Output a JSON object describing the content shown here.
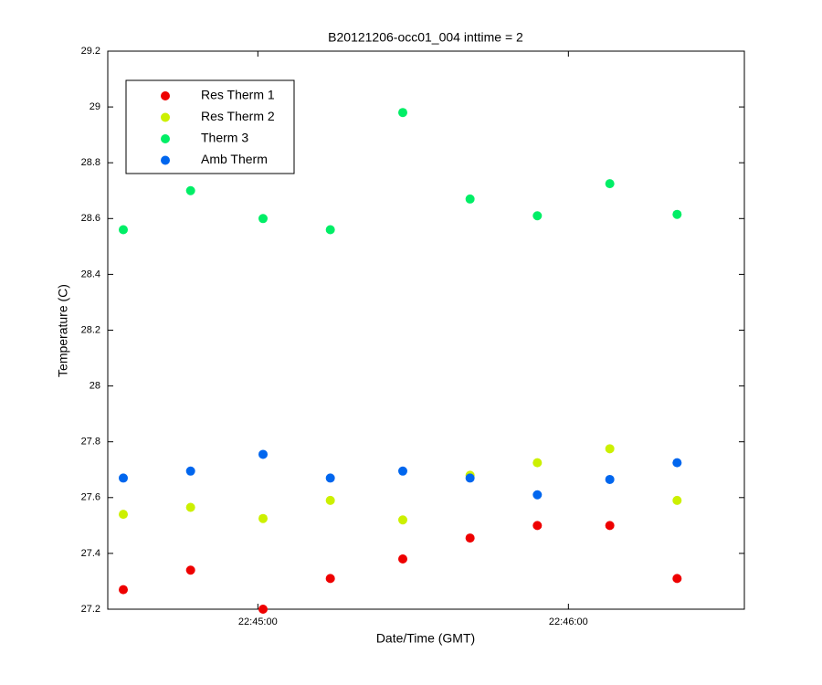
{
  "chart_data": {
    "type": "scatter",
    "title": "B20121206-occ01_004 inttime = 2",
    "x_label": "Date/Time (GMT)",
    "y_label": "Temperature (C)",
    "x": [
      "22:44:34",
      "22:44:47",
      "22:45:01",
      "22:45:14",
      "22:45:28",
      "22:45:41",
      "22:45:54",
      "22:46:08",
      "22:46:21"
    ],
    "xlim": [
      "22:44:31",
      "22:46:34"
    ],
    "xticks": [
      "22:45:00",
      "22:46:00"
    ],
    "ylim": [
      27.2,
      29.2
    ],
    "yticks": [
      27.2,
      27.4,
      27.6,
      27.8,
      28,
      28.2,
      28.4,
      28.6,
      28.8,
      29,
      29.2
    ],
    "legend_position": "upper left",
    "series": [
      {
        "name": "Res Therm 1",
        "color": "#ee0000",
        "values": [
          27.27,
          27.34,
          27.2,
          27.31,
          27.38,
          27.455,
          27.5,
          27.5,
          27.31
        ]
      },
      {
        "name": "Res Therm 2",
        "color": "#ccf000",
        "values": [
          27.54,
          27.565,
          27.525,
          27.59,
          27.52,
          27.68,
          27.725,
          27.775,
          27.59
        ]
      },
      {
        "name": "Therm 3",
        "color": "#00ee66",
        "values": [
          28.56,
          28.7,
          28.6,
          28.56,
          28.98,
          28.67,
          28.61,
          28.725,
          28.615
        ]
      },
      {
        "name": "Amb Therm",
        "color": "#0066ee",
        "values": [
          27.67,
          27.695,
          27.755,
          27.67,
          27.695,
          27.67,
          27.61,
          27.665,
          27.725
        ]
      }
    ]
  }
}
